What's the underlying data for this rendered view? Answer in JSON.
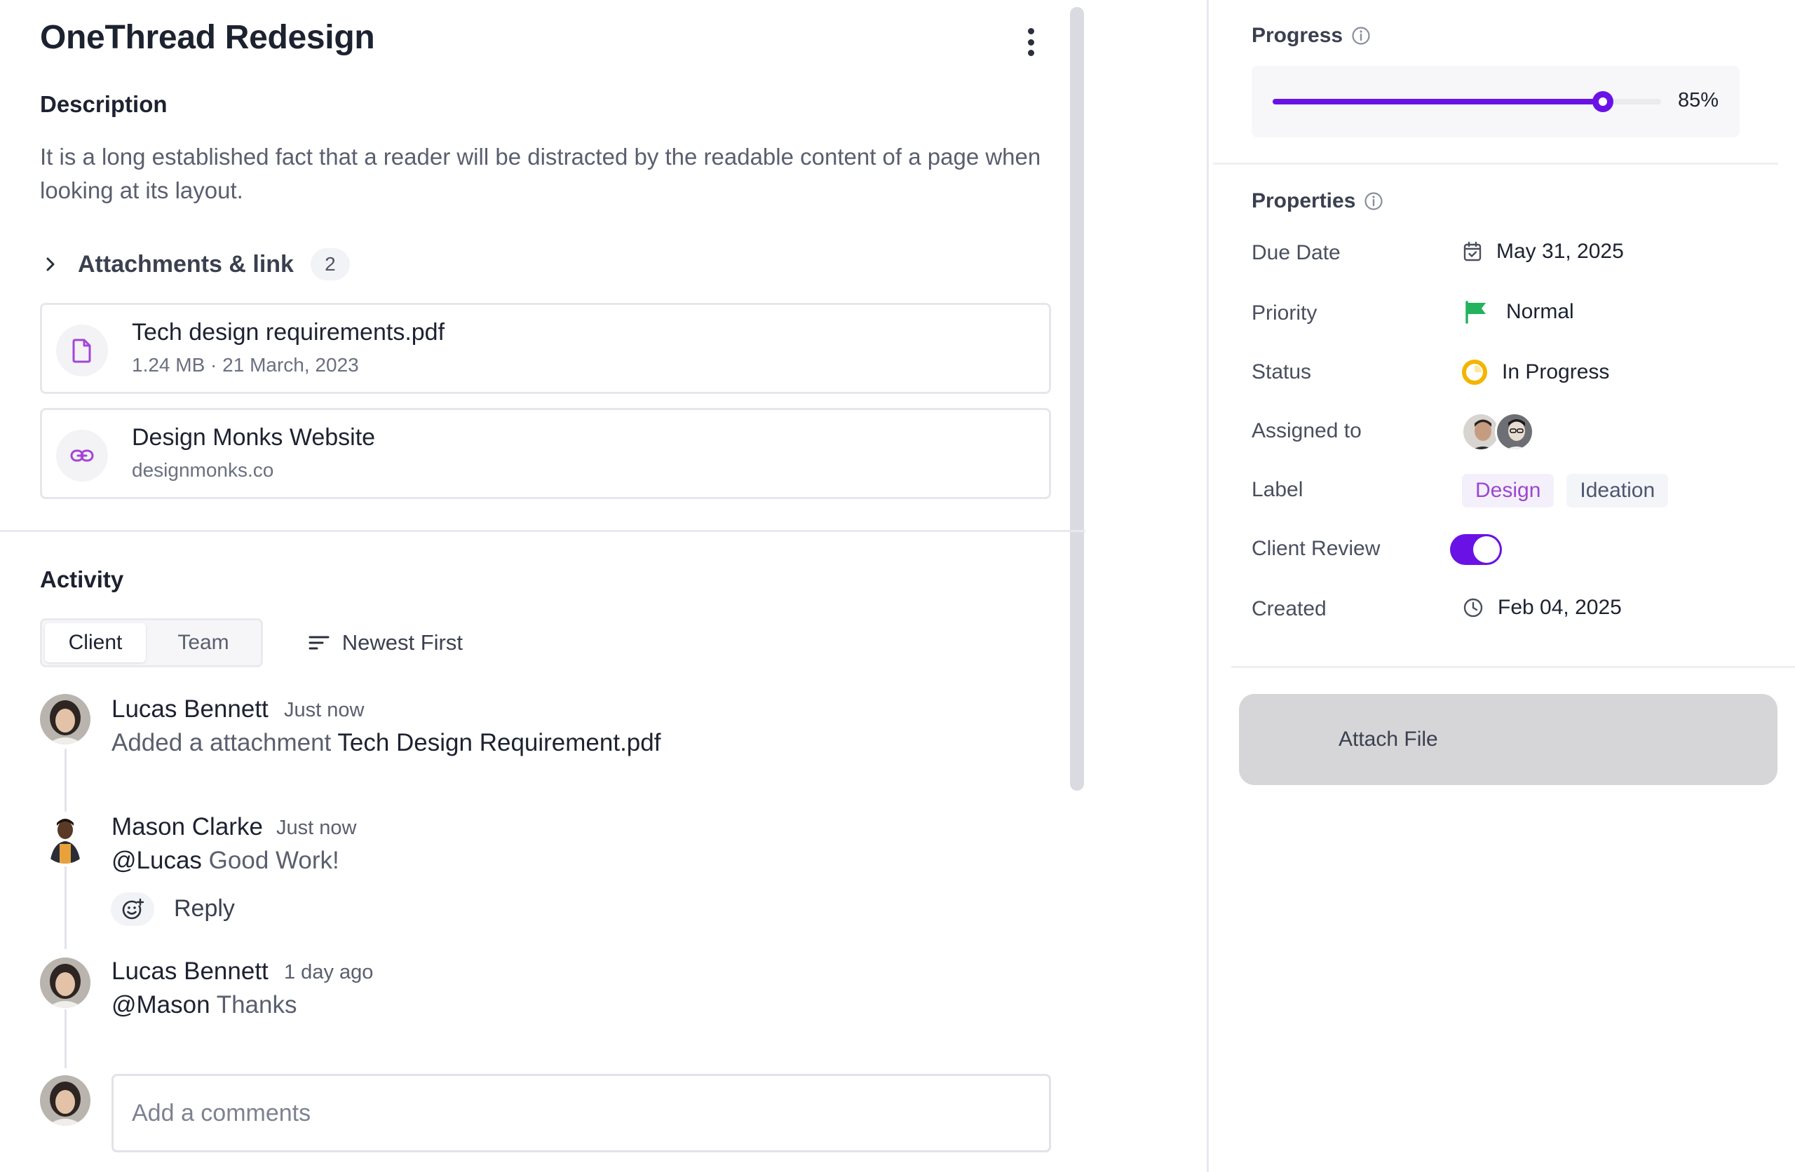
{
  "task": {
    "title": "OneThread Redesign",
    "description_heading": "Description",
    "description": "It is a long established fact that a reader will be distracted by the readable content of a page when looking at its layout."
  },
  "attachments": {
    "label": "Attachments & link",
    "count": "2",
    "items": [
      {
        "name": "Tech design requirements.pdf",
        "meta": "1.24 MB · 21 March, 2023",
        "icon": "file-icon"
      },
      {
        "name": "Design Monks Website",
        "meta": "designmonks.co",
        "icon": "link-icon"
      }
    ]
  },
  "activity": {
    "heading": "Activity",
    "tabs": [
      "Client",
      "Team"
    ],
    "active_tab": "Client",
    "sort_label": "Newest First",
    "comments": [
      {
        "author": "Lucas Bennett",
        "time": "Just now",
        "text_prefix": "Added a attachment",
        "text_highlight": "Tech Design Requirement.pdf"
      },
      {
        "author": "Mason Clarke",
        "time": "Just now",
        "mention": "@Lucas",
        "text": "Good Work!"
      },
      {
        "author": "Lucas Bennett",
        "time": "1 day ago",
        "mention": "@Mason",
        "text": "Thanks"
      }
    ],
    "reply_label": "Reply",
    "comment_placeholder": "Add a comments"
  },
  "progress": {
    "label": "Progress",
    "value": 85,
    "display": "85%",
    "color": "#6a12e6"
  },
  "properties": {
    "heading": "Properties",
    "due_date": {
      "label": "Due Date",
      "value": "May 31, 2025"
    },
    "priority": {
      "label": "Priority",
      "value": "Normal",
      "color": "#22b35c"
    },
    "status": {
      "label": "Status",
      "value": "In Progress",
      "color": "#f5b400"
    },
    "assigned": {
      "label": "Assigned to"
    },
    "label": {
      "label": "Label",
      "tags": [
        "Design",
        "Ideation"
      ]
    },
    "client_review": {
      "label": "Client Review",
      "enabled": true
    },
    "created": {
      "label": "Created",
      "value": "Feb 04, 2025"
    }
  },
  "actions": {
    "attach_file": "Attach File"
  }
}
